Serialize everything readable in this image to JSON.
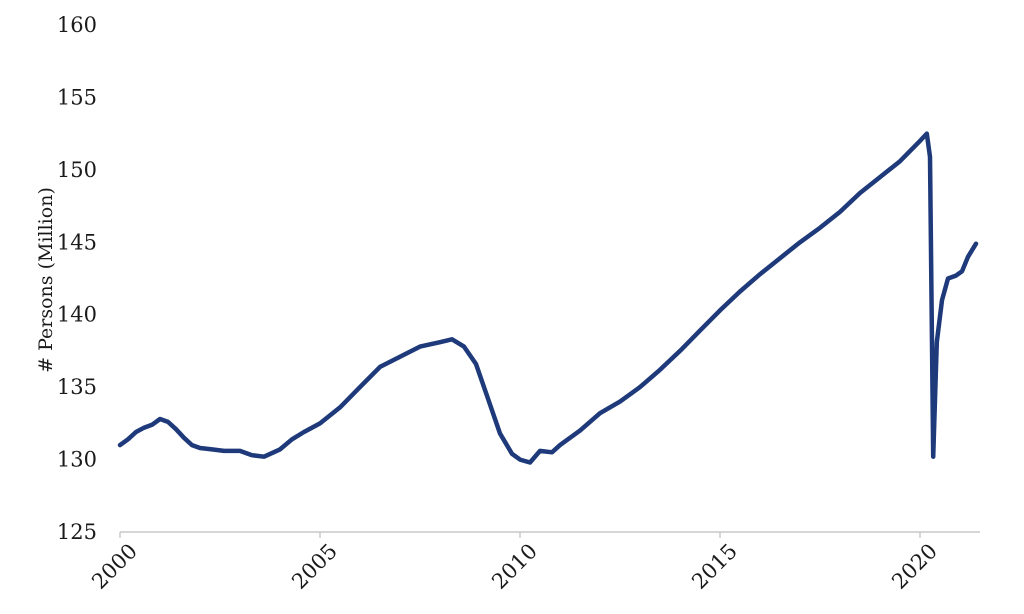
{
  "chart_data": {
    "type": "line",
    "title": "",
    "xlabel": "",
    "ylabel": "# Persons (Million)",
    "xlim": [
      2000,
      2021.5
    ],
    "ylim": [
      125,
      160
    ],
    "y_ticks": [
      125,
      130,
      135,
      140,
      145,
      150,
      155,
      160
    ],
    "x_ticks": [
      2000,
      2005,
      2010,
      2015,
      2020
    ],
    "grid": false,
    "legend": "none",
    "line_color": "#1f3a7a",
    "series": [
      {
        "name": "",
        "x": [
          2000.0,
          2000.2,
          2000.4,
          2000.6,
          2000.8,
          2001.0,
          2001.2,
          2001.4,
          2001.6,
          2001.8,
          2002.0,
          2002.3,
          2002.6,
          2003.0,
          2003.3,
          2003.6,
          2004.0,
          2004.3,
          2004.6,
          2005.0,
          2005.5,
          2006.0,
          2006.5,
          2007.0,
          2007.5,
          2008.0,
          2008.3,
          2008.6,
          2008.9,
          2009.2,
          2009.5,
          2009.8,
          2010.0,
          2010.25,
          2010.5,
          2010.8,
          2011.0,
          2011.5,
          2012.0,
          2012.5,
          2013.0,
          2013.5,
          2014.0,
          2014.5,
          2015.0,
          2015.5,
          2016.0,
          2016.5,
          2017.0,
          2017.5,
          2018.0,
          2018.5,
          2019.0,
          2019.5,
          2020.0,
          2020.17,
          2020.25,
          2020.33,
          2020.42,
          2020.55,
          2020.7,
          2020.9,
          2021.05,
          2021.2,
          2021.4
        ],
        "values": [
          131.0,
          131.4,
          131.9,
          132.2,
          132.4,
          132.8,
          132.6,
          132.1,
          131.5,
          131.0,
          130.8,
          130.7,
          130.6,
          130.6,
          130.3,
          130.2,
          130.7,
          131.4,
          131.9,
          132.5,
          133.6,
          135.0,
          136.4,
          137.1,
          137.8,
          138.1,
          138.3,
          137.8,
          136.6,
          134.2,
          131.8,
          130.4,
          130.0,
          129.8,
          130.6,
          130.5,
          131.0,
          132.0,
          133.2,
          134.0,
          135.0,
          136.2,
          137.5,
          138.9,
          140.3,
          141.6,
          142.8,
          143.9,
          145.0,
          146.0,
          147.1,
          148.4,
          149.5,
          150.6,
          152.0,
          152.5,
          150.9,
          130.2,
          138.1,
          141.0,
          142.5,
          142.7,
          143.0,
          144.0,
          144.9
        ]
      }
    ]
  }
}
